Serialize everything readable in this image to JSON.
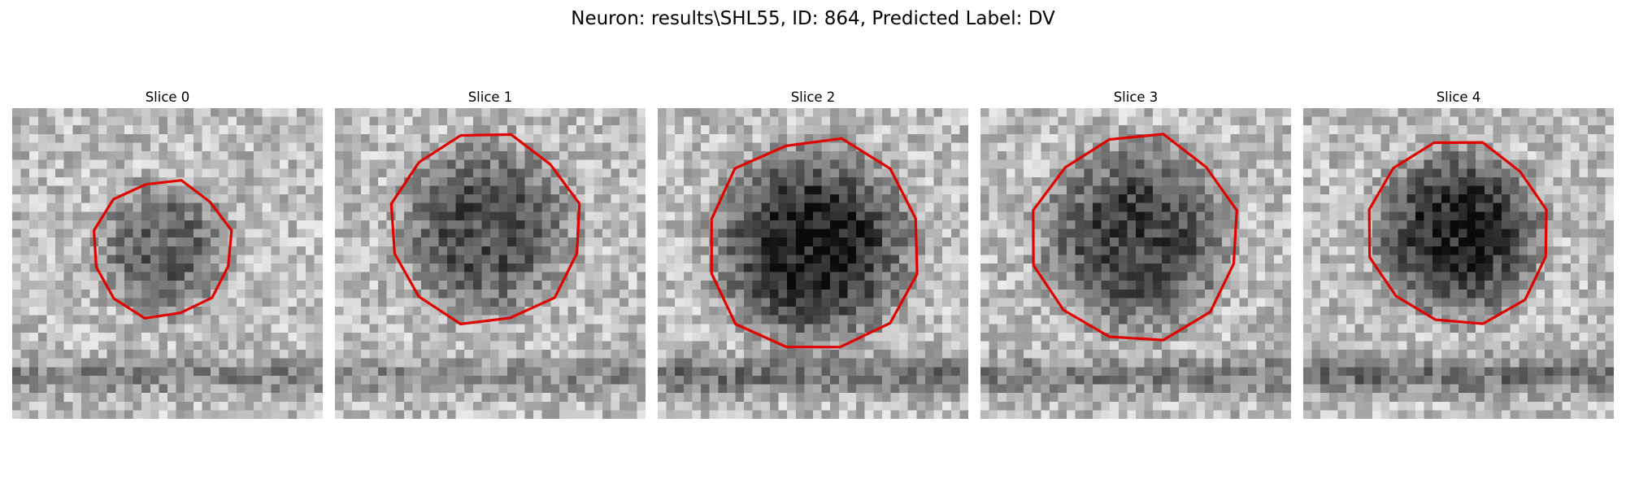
{
  "title": "Neuron: results\\SHL55, ID: 864, Predicted Label: DV",
  "contour_color": "#e00000",
  "panels": [
    {
      "label": "Slice 0",
      "cx": 17.5,
      "cy": 16.3,
      "r": 8.0,
      "seed": 11,
      "cell_depth": 0.35,
      "band_depth": 0.25
    },
    {
      "label": "Slice 1",
      "cx": 17.5,
      "cy": 14.0,
      "r": 11.0,
      "seed": 23,
      "cell_depth": 0.42,
      "band_depth": 0.22
    },
    {
      "label": "Slice 2",
      "cx": 18.0,
      "cy": 16.0,
      "r": 12.5,
      "seed": 37,
      "cell_depth": 0.6,
      "band_depth": 0.35
    },
    {
      "label": "Slice 3",
      "cx": 18.0,
      "cy": 15.0,
      "r": 12.0,
      "seed": 41,
      "cell_depth": 0.48,
      "band_depth": 0.3
    },
    {
      "label": "Slice 4",
      "cx": 18.0,
      "cy": 14.5,
      "r": 10.5,
      "seed": 53,
      "cell_depth": 0.58,
      "band_depth": 0.35
    }
  ]
}
